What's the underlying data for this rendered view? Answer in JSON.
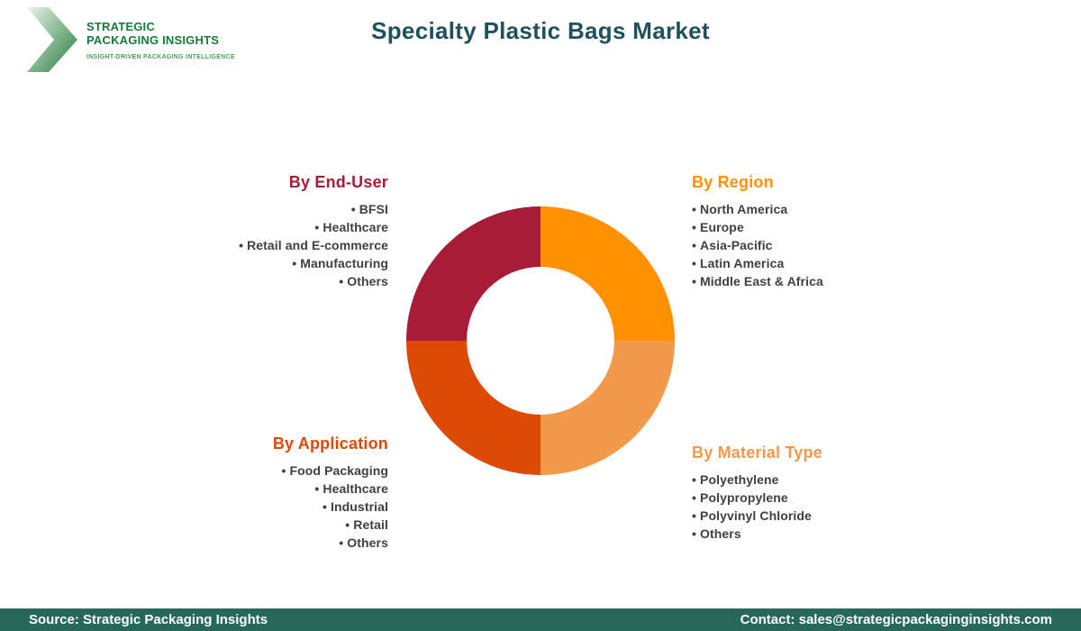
{
  "brand": {
    "name": "STRATEGIC\nPACKAGING INSIGHTS",
    "tagline": "INSIGHT-DRIVEN PACKAGING INTELLIGENCE",
    "text_color": "#157A3B",
    "tagline_color": "#45A160",
    "chevron_color_light": "#D8EAD8",
    "chevron_color_dark": "#257A3E"
  },
  "header": {
    "title": "Specialty Plastic Bags Market",
    "title_color": "#1F515C"
  },
  "chart_data": {
    "type": "pie",
    "subtype": "donut",
    "inner_radius_ratio": 0.55,
    "start_angle_deg": 0,
    "direction": "clockwise",
    "segments": [
      {
        "label": "By Region",
        "value": 25,
        "color": "#FF9102"
      },
      {
        "label": "By Material Type",
        "value": 25,
        "color": "#F2994A"
      },
      {
        "label": "By Application",
        "value": 25,
        "color": "#DD4A06"
      },
      {
        "label": "By End-User",
        "value": 25,
        "color": "#A81C38"
      }
    ]
  },
  "categories": [
    {
      "id": "end-user",
      "title": "By End-User",
      "color": "#A81C38",
      "align": "right",
      "items": [
        "BFSI",
        "Healthcare",
        "Retail and E-commerce",
        "Manufacturing",
        "Others"
      ]
    },
    {
      "id": "region",
      "title": "By Region",
      "color": "#FF9102",
      "align": "left",
      "items": [
        "North America",
        "Europe",
        "Asia-Pacific",
        "Latin America",
        "Middle East & Africa"
      ]
    },
    {
      "id": "application",
      "title": "By Application",
      "color": "#DD4A06",
      "align": "right",
      "items": [
        "Food Packaging",
        "Healthcare",
        "Industrial",
        "Retail",
        "Others"
      ]
    },
    {
      "id": "material-type",
      "title": "By Material Type",
      "color": "#F2994A",
      "align": "left",
      "items": [
        "Polyethylene",
        "Polypropylene",
        "Polyvinyl Chloride",
        "Others"
      ]
    }
  ],
  "footer": {
    "source": "Source: Strategic Packaging Insights",
    "contact": "Contact: sales@strategicpackaginginsights.com",
    "background": "#26695B"
  }
}
